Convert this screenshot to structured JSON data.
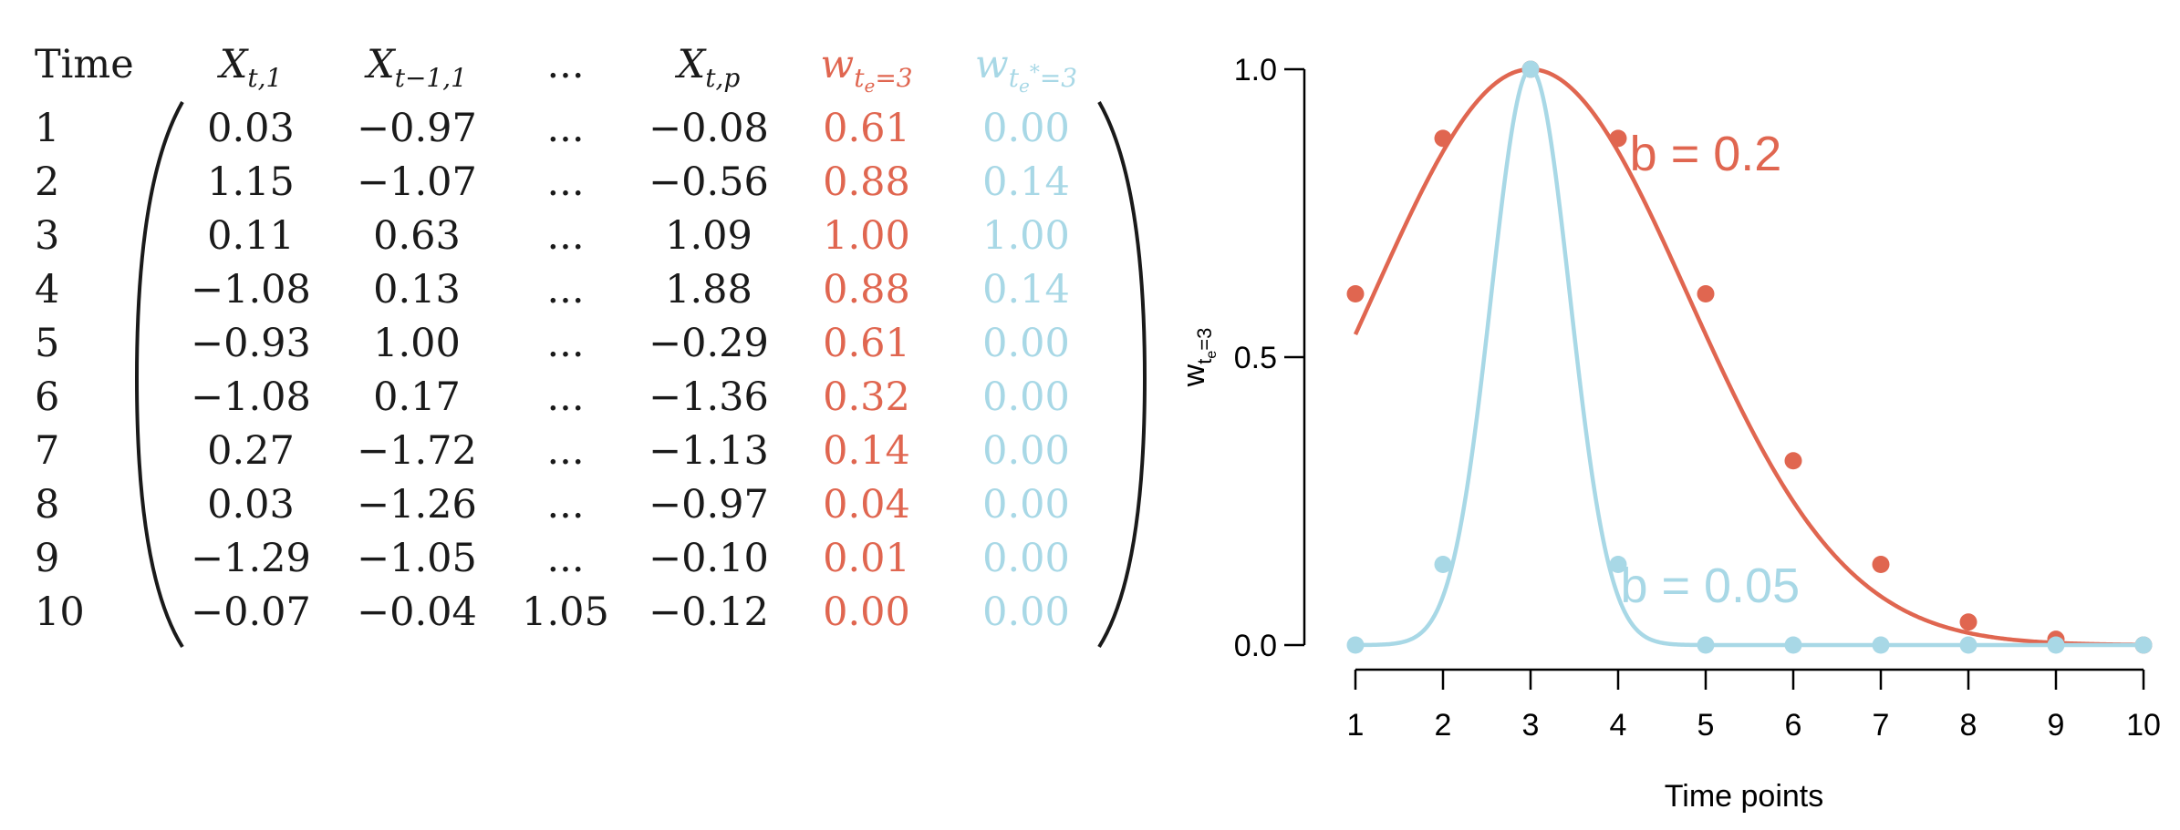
{
  "matrix": {
    "headers": {
      "time": "Time",
      "x_t1": {
        "base": "X",
        "sub": "t,1"
      },
      "x_tm1": {
        "base": "X",
        "sub": "t−1,1"
      },
      "dots": "...",
      "x_tp": {
        "base": "X",
        "sub": "t,p"
      },
      "w_red": {
        "base": "w",
        "sub": "t",
        "subsub": "e",
        "tail": "=3"
      },
      "w_blue": {
        "base": "w",
        "sub": "t",
        "subsub": "e",
        "star": "*",
        "tail": "=3"
      }
    },
    "rows": [
      {
        "time": "1",
        "x1": "0.03",
        "x2": "−0.97",
        "mid": "...",
        "xp": "−0.08",
        "w1": "0.61",
        "w2": "0.00"
      },
      {
        "time": "2",
        "x1": "1.15",
        "x2": "−1.07",
        "mid": "...",
        "xp": "−0.56",
        "w1": "0.88",
        "w2": "0.14"
      },
      {
        "time": "3",
        "x1": "0.11",
        "x2": "0.63",
        "mid": "...",
        "xp": "1.09",
        "w1": "1.00",
        "w2": "1.00"
      },
      {
        "time": "4",
        "x1": "−1.08",
        "x2": "0.13",
        "mid": "...",
        "xp": "1.88",
        "w1": "0.88",
        "w2": "0.14"
      },
      {
        "time": "5",
        "x1": "−0.93",
        "x2": "1.00",
        "mid": "...",
        "xp": "−0.29",
        "w1": "0.61",
        "w2": "0.00"
      },
      {
        "time": "6",
        "x1": "−1.08",
        "x2": "0.17",
        "mid": "...",
        "xp": "−1.36",
        "w1": "0.32",
        "w2": "0.00"
      },
      {
        "time": "7",
        "x1": "0.27",
        "x2": "−1.72",
        "mid": "...",
        "xp": "−1.13",
        "w1": "0.14",
        "w2": "0.00"
      },
      {
        "time": "8",
        "x1": "0.03",
        "x2": "−1.26",
        "mid": "...",
        "xp": "−0.97",
        "w1": "0.04",
        "w2": "0.00"
      },
      {
        "time": "9",
        "x1": "−1.29",
        "x2": "−1.05",
        "mid": "...",
        "xp": "−0.10",
        "w1": "0.01",
        "w2": "0.00"
      },
      {
        "time": "10",
        "x1": "−0.07",
        "x2": "−0.04",
        "mid": "1.05",
        "xp": "−0.12",
        "w1": "0.00",
        "w2": "0.00"
      }
    ]
  },
  "chart_data": {
    "type": "line",
    "xlabel": "Time points",
    "ylabel": {
      "base": "w",
      "sub": "t",
      "subsub": "e",
      "tail": "=3"
    },
    "x": [
      1,
      2,
      3,
      4,
      5,
      6,
      7,
      8,
      9,
      10
    ],
    "xlim": [
      1,
      10
    ],
    "ylim": [
      0,
      1
    ],
    "xticks": [
      "1",
      "2",
      "3",
      "4",
      "5",
      "6",
      "7",
      "8",
      "9",
      "10"
    ],
    "yticks": [
      "0.0",
      "0.5",
      "1.0"
    ],
    "center": 3,
    "series": [
      {
        "name": "b = 0.2",
        "b": 0.2,
        "color": "#e06650",
        "values": [
          0.61,
          0.88,
          1.0,
          0.88,
          0.61,
          0.32,
          0.14,
          0.04,
          0.01,
          0.0
        ]
      },
      {
        "name": "b = 0.05",
        "b": 0.05,
        "color": "#a8d8e6",
        "values": [
          0.0,
          0.14,
          1.0,
          0.14,
          0.0,
          0.0,
          0.0,
          0.0,
          0.0,
          0.0
        ]
      }
    ],
    "grid": false,
    "legend": "inline labels"
  }
}
